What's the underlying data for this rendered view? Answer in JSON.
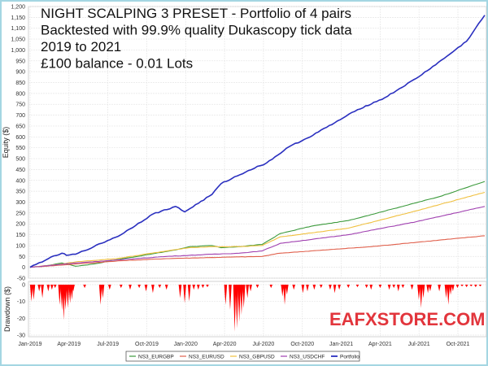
{
  "chart_data": {
    "type": "line",
    "title_lines": [
      "NIGHT SCALPING 3 PRESET - Portfolio of 4 pairs",
      "Backtested with 99.9% quality Dukascopy tick data",
      "2019 to 2021",
      "£100 balance - 0.01 Lots"
    ],
    "watermark": "EAFXSTORE.COM",
    "xlabel": "",
    "ylabel": "Equity ($)",
    "ylim": [
      -50,
      1200
    ],
    "yticks": [
      "-50",
      "0",
      "50",
      "100",
      "150",
      "200",
      "250",
      "300",
      "350",
      "400",
      "450",
      "500",
      "550",
      "600",
      "650",
      "700",
      "750",
      "800",
      "850",
      "900",
      "950",
      "1,000",
      "1,050",
      "1,100",
      "1,150",
      "1,200"
    ],
    "x_ticks": [
      "Jan-2019",
      "Apr-2019",
      "Jul-2019",
      "Oct-2019",
      "Jan-2020",
      "Apr-2020",
      "Jul-2020",
      "Oct-2020",
      "Jan-2021",
      "Apr-2021",
      "Jul-2021",
      "Oct-2021"
    ],
    "grid": true,
    "legend_position": "bottom",
    "series": [
      {
        "name": "NS3_EURGBP",
        "color": "#3c9a3c",
        "x": [
          0,
          0.03,
          0.07,
          0.1,
          0.14,
          0.19,
          0.25,
          0.32,
          0.35,
          0.4,
          0.42,
          0.46,
          0.51,
          0.55,
          0.62,
          0.7,
          0.8,
          0.9,
          1.0
        ],
        "values": [
          0,
          5,
          20,
          5,
          15,
          35,
          55,
          80,
          95,
          100,
          90,
          95,
          105,
          155,
          190,
          215,
          270,
          325,
          395
        ]
      },
      {
        "name": "NS3_EURUSD",
        "color": "#e0604c",
        "x": [
          0,
          0.1,
          0.2,
          0.3,
          0.4,
          0.46,
          0.51,
          0.55,
          0.65,
          0.75,
          0.85,
          1.0
        ],
        "values": [
          0,
          15,
          30,
          40,
          45,
          48,
          50,
          65,
          80,
          95,
          115,
          145
        ]
      },
      {
        "name": "NS3_GBPUSD",
        "color": "#f0c040",
        "x": [
          0,
          0.07,
          0.1,
          0.19,
          0.3,
          0.35,
          0.4,
          0.46,
          0.51,
          0.55,
          0.7,
          0.85,
          1.0
        ],
        "values": [
          0,
          15,
          25,
          40,
          75,
          90,
          95,
          95,
          100,
          140,
          180,
          260,
          345
        ]
      },
      {
        "name": "NS3_USDCHF",
        "color": "#a040b0",
        "x": [
          0,
          0.1,
          0.2,
          0.3,
          0.4,
          0.46,
          0.51,
          0.55,
          0.7,
          0.85,
          1.0
        ],
        "values": [
          0,
          20,
          35,
          50,
          60,
          65,
          75,
          110,
          150,
          210,
          280
        ]
      },
      {
        "name": "Portfolio",
        "color": "#2a2fbf",
        "x": [
          0,
          0.04,
          0.07,
          0.08,
          0.1,
          0.14,
          0.2,
          0.27,
          0.32,
          0.34,
          0.4,
          0.42,
          0.48,
          0.52,
          0.57,
          0.61,
          0.67,
          0.72,
          0.78,
          0.85,
          0.91,
          0.96,
          1.0
        ],
        "values": [
          0,
          40,
          65,
          55,
          60,
          95,
          150,
          245,
          280,
          255,
          335,
          385,
          445,
          480,
          555,
          595,
          665,
          725,
          780,
          870,
          960,
          1040,
          1160
        ]
      }
    ],
    "drawdown": {
      "ylabel": "Drawdown ($)",
      "ylim": [
        -30,
        0
      ],
      "yticks": [
        "0",
        "-10",
        "-20",
        "-30"
      ],
      "color": "#ff0000",
      "bars": [
        [
          0.003,
          -10
        ],
        [
          0.008,
          -9
        ],
        [
          0.02,
          -4
        ],
        [
          0.027,
          -8
        ],
        [
          0.04,
          -4
        ],
        [
          0.048,
          -3
        ],
        [
          0.055,
          -2
        ],
        [
          0.065,
          -12
        ],
        [
          0.07,
          -15
        ],
        [
          0.074,
          -21
        ],
        [
          0.078,
          -15
        ],
        [
          0.083,
          -14
        ],
        [
          0.088,
          -11
        ],
        [
          0.092,
          -9
        ],
        [
          0.095,
          -4
        ],
        [
          0.12,
          -2
        ],
        [
          0.155,
          -12
        ],
        [
          0.16,
          -8
        ],
        [
          0.175,
          -3
        ],
        [
          0.2,
          -2
        ],
        [
          0.22,
          -3
        ],
        [
          0.24,
          -2
        ],
        [
          0.255,
          -4
        ],
        [
          0.27,
          -5
        ],
        [
          0.285,
          -2
        ],
        [
          0.3,
          -3
        ],
        [
          0.33,
          -8
        ],
        [
          0.34,
          -11
        ],
        [
          0.35,
          -10
        ],
        [
          0.36,
          -3
        ],
        [
          0.37,
          -3
        ],
        [
          0.38,
          -2
        ],
        [
          0.39,
          -1.5
        ],
        [
          0.43,
          -12
        ],
        [
          0.44,
          -15
        ],
        [
          0.45,
          -28
        ],
        [
          0.455,
          -26
        ],
        [
          0.46,
          -22
        ],
        [
          0.465,
          -18
        ],
        [
          0.47,
          -14
        ],
        [
          0.478,
          -8
        ],
        [
          0.485,
          -4
        ],
        [
          0.5,
          -2
        ],
        [
          0.53,
          -2
        ],
        [
          0.555,
          -7
        ],
        [
          0.56,
          -12
        ],
        [
          0.565,
          -6
        ],
        [
          0.58,
          -3
        ],
        [
          0.6,
          -5
        ],
        [
          0.61,
          -4
        ],
        [
          0.625,
          -3
        ],
        [
          0.64,
          -2
        ],
        [
          0.66,
          -3
        ],
        [
          0.67,
          -5
        ],
        [
          0.68,
          -3
        ],
        [
          0.7,
          -2
        ],
        [
          0.72,
          -1.5
        ],
        [
          0.74,
          -2
        ],
        [
          0.75,
          -3
        ],
        [
          0.77,
          -2
        ],
        [
          0.79,
          -3
        ],
        [
          0.8,
          -2
        ],
        [
          0.81,
          -4
        ],
        [
          0.82,
          -2
        ],
        [
          0.84,
          -3
        ],
        [
          0.855,
          -9
        ],
        [
          0.86,
          -14
        ],
        [
          0.865,
          -8
        ],
        [
          0.875,
          -5
        ],
        [
          0.88,
          -4
        ],
        [
          0.9,
          -4
        ],
        [
          0.915,
          -8
        ],
        [
          0.92,
          -12
        ],
        [
          0.925,
          -6
        ],
        [
          0.93,
          -4
        ],
        [
          0.94,
          -2
        ],
        [
          0.95,
          -1
        ],
        [
          0.96,
          -1.5
        ],
        [
          0.97,
          -1
        ],
        [
          0.98,
          -1.5
        ],
        [
          0.99,
          -1
        ]
      ]
    }
  }
}
